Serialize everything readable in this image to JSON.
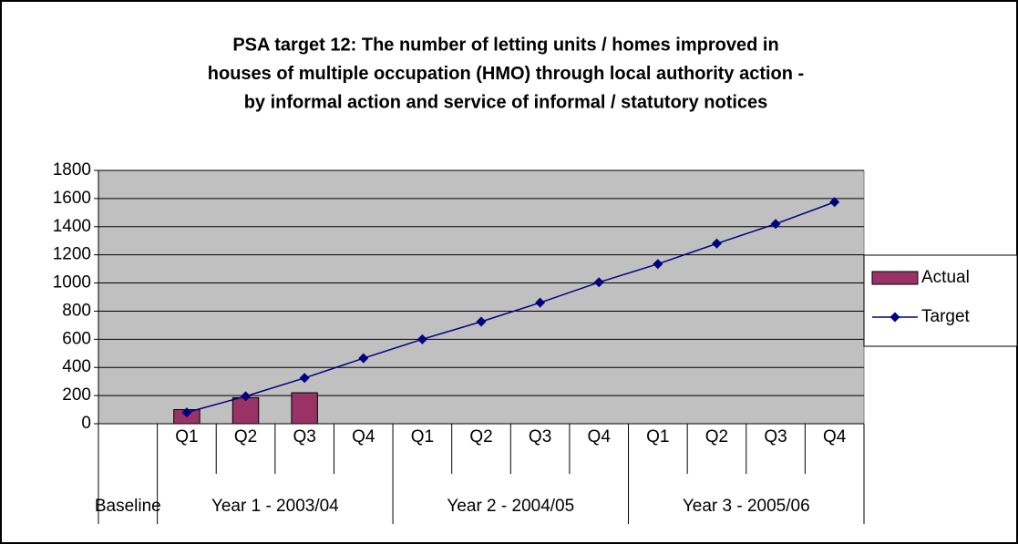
{
  "chart_data": {
    "type": "bar",
    "title": [
      "PSA target 12: The number of letting units / homes improved in",
      "houses of multiple occupation (HMO) through local authority action -",
      "by informal action and service of informal / statutory notices"
    ],
    "categories": [
      null,
      "Q1",
      "Q2",
      "Q3",
      "Q4",
      "Q1",
      "Q2",
      "Q3",
      "Q4",
      "Q1",
      "Q2",
      "Q3",
      "Q4"
    ],
    "groups": [
      {
        "label": "Baseline",
        "span": 1
      },
      {
        "label": "Year 1 - 2003/04",
        "span": 4
      },
      {
        "label": "Year 2 - 2004/05",
        "span": 4
      },
      {
        "label": "Year 3 - 2005/06",
        "span": 4
      }
    ],
    "series": [
      {
        "name": "Actual",
        "type": "bar",
        "color": "#993366",
        "values": [
          null,
          100,
          185,
          220,
          null,
          null,
          null,
          null,
          null,
          null,
          null,
          null,
          null
        ]
      },
      {
        "name": "Target",
        "type": "line",
        "color": "#000080",
        "values": [
          null,
          80,
          195,
          325,
          465,
          600,
          725,
          860,
          1005,
          1135,
          1280,
          1420,
          1575
        ]
      }
    ],
    "ylim": [
      0,
      1800
    ],
    "yticks": [
      0,
      200,
      400,
      600,
      800,
      1000,
      1200,
      1400,
      1600,
      1800
    ],
    "grid": true,
    "legend": "right"
  }
}
